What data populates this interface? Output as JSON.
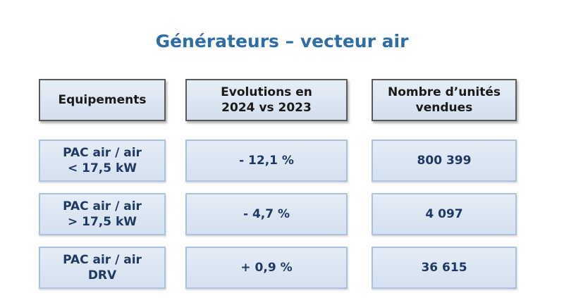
{
  "title": "Générateurs – vecteur air",
  "table": {
    "header": [
      [
        "Equipements"
      ],
      [
        "Evolutions en",
        "2024 vs 2023"
      ],
      [
        "Nombre d’unités",
        "vendues"
      ]
    ],
    "rows": [
      [
        [
          "PAC air / air",
          "< 17,5 kW"
        ],
        [
          "- 12,1 %"
        ],
        [
          "800 399"
        ]
      ],
      [
        [
          "PAC air / air",
          "> 17,5 kW"
        ],
        [
          "- 4,7 %"
        ],
        [
          "4 097"
        ]
      ],
      [
        [
          "PAC air / air",
          "DRV"
        ],
        [
          "+ 0,9 %"
        ],
        [
          "36 615"
        ]
      ]
    ]
  }
}
